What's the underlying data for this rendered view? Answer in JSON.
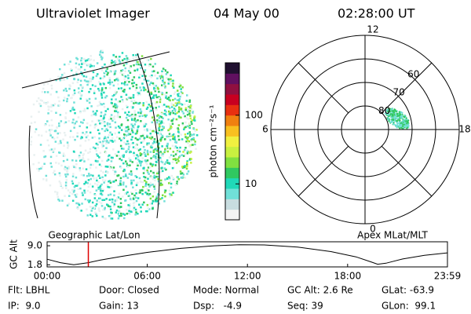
{
  "header": {
    "title": "Ultraviolet Imager",
    "date": "04 May 00",
    "time": "02:28:00 UT"
  },
  "image_labels": {
    "left": "Geographic Lat/Lon",
    "right": "Apex MLat/MLT"
  },
  "chart_data": [
    {
      "type": "colorbar",
      "label": "photon cm⁻²s⁻¹",
      "log_scale": true,
      "clim": [
        3,
        580
      ],
      "ticks": [
        10,
        100
      ],
      "colors": [
        "#f4f4f4",
        "#c8dde0",
        "#70e0d8",
        "#20d8b8",
        "#30c860",
        "#80e040",
        "#c8f040",
        "#f0f040",
        "#f8c020",
        "#f08010",
        "#e83010",
        "#c80020",
        "#901040",
        "#601060",
        "#201030"
      ]
    },
    {
      "type": "polar",
      "rlim": [
        90,
        50
      ],
      "rticks": [
        80,
        70,
        60
      ],
      "hours": [
        12,
        6,
        0,
        18
      ]
    },
    {
      "type": "line",
      "y_label": "GC Alt",
      "xlim": [
        0,
        23.98
      ],
      "ylim": [
        1.0,
        10.5
      ],
      "yticks": [
        {
          "value": 1.8,
          "label": "1.8"
        },
        {
          "value": 9,
          "label": "9.0"
        }
      ],
      "xticks": [
        {
          "value": 0,
          "label": "00:00"
        },
        {
          "value": 6,
          "label": "06:00"
        },
        {
          "value": 12,
          "label": "12:00"
        },
        {
          "value": 18,
          "label": "18:00"
        },
        {
          "value": 23.98,
          "label": "23:59"
        }
      ],
      "x": [
        0,
        0.8,
        1.6,
        2.47,
        3.2,
        4.5,
        6,
        8,
        10,
        11.5,
        13,
        15,
        17,
        18.5,
        19.4,
        19.8,
        20.3,
        21.3,
        22.6,
        23.98
      ],
      "series": [
        {
          "name": "GC Alt",
          "color": "#000000",
          "values": [
            3.9,
            2.6,
            1.8,
            2.6,
            3.6,
            5.0,
            6.5,
            8.0,
            9.0,
            9.4,
            9.3,
            8.5,
            6.8,
            4.8,
            2.9,
            2.0,
            2.4,
            4.0,
            5.4,
            6.3
          ]
        }
      ],
      "marker": {
        "x": 2.47,
        "color": "#e00000"
      }
    }
  ],
  "footer": [
    [
      "Flt: LBHL",
      "Door: Closed",
      "Mode: Normal",
      "GC Alt: 2.6 Re",
      "GLat: -63.9"
    ],
    [
      "IP:  9.0",
      "Gain: 13",
      "Dsp:   -4.9",
      "Seq: 39",
      "GLon:  99.1"
    ]
  ]
}
